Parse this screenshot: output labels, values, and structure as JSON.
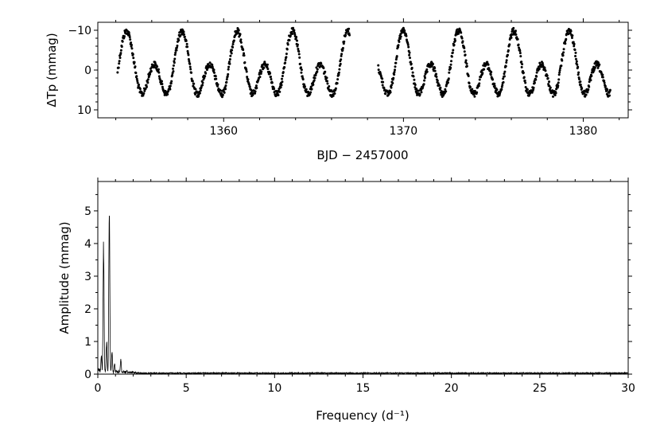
{
  "chart_data": [
    {
      "type": "scatter",
      "xlabel": "BJD − 2457000",
      "ylabel": "ΔTp (mmag)",
      "xlim": [
        1353.0,
        1382.5
      ],
      "ylim": [
        12.0,
        -12.0
      ],
      "y_inverted": true,
      "xticks": [
        1360,
        1370,
        1380
      ],
      "xtick_labels": [
        "1360",
        "1370",
        "1380"
      ],
      "yticks": [
        -10,
        0,
        10
      ],
      "ytick_labels": [
        "−10",
        "0",
        "10"
      ],
      "grid": false,
      "marker_color": "#000000",
      "segments": [
        {
          "x_start": 1354.1,
          "x_end": 1367.0
        },
        {
          "x_start": 1368.6,
          "x_end": 1381.5
        }
      ],
      "model": {
        "components": [
          {
            "frequency": 0.65,
            "amplitude": 5.6,
            "phase": 0.0
          },
          {
            "frequency": 0.325,
            "amplitude": 4.2,
            "phase": 0.0
          }
        ],
        "fit_reference": {
          "note": "approximate reading of plotted light curve",
          "peaks_mmag": [
            {
              "x": 1354.6,
              "y": -8.0
            },
            {
              "x": 1355.4,
              "y": 10.0
            },
            {
              "x": 1357.6,
              "y": -11.5
            },
            {
              "x": 1359.1,
              "y": -3.5
            },
            {
              "x": 1360.7,
              "y": -11.0
            },
            {
              "x": 1363.8,
              "y": -11.5
            },
            {
              "x": 1366.7,
              "y": -7.5
            },
            {
              "x": 1373.0,
              "y": -11.5
            },
            {
              "x": 1376.1,
              "y": -11.0
            },
            {
              "x": 1379.1,
              "y": -10.5
            }
          ]
        }
      }
    },
    {
      "type": "line",
      "xlabel": "Frequency (d⁻¹)",
      "ylabel": "Amplitude (mmag)",
      "xlim": [
        0,
        30
      ],
      "ylim": [
        0,
        5.9
      ],
      "xticks": [
        0,
        5,
        10,
        15,
        20,
        25,
        30
      ],
      "xtick_labels": [
        "0",
        "5",
        "10",
        "15",
        "20",
        "25",
        "30"
      ],
      "yticks": [
        0,
        1,
        2,
        3,
        4,
        5
      ],
      "ytick_labels": [
        "0",
        "1",
        "2",
        "3",
        "4",
        "5"
      ],
      "grid": false,
      "line_color": "#000000",
      "peaks": [
        {
          "x": 0.325,
          "y": 4.25
        },
        {
          "x": 0.65,
          "y": 5.6
        },
        {
          "x": 0.2,
          "y": 0.6
        },
        {
          "x": 0.5,
          "y": 1.05
        },
        {
          "x": 0.8,
          "y": 0.75
        },
        {
          "x": 0.95,
          "y": 0.35
        },
        {
          "x": 1.3,
          "y": 0.5
        },
        {
          "x": 1.65,
          "y": 0.12
        },
        {
          "x": 2.0,
          "y": 0.08
        }
      ],
      "noise_level": 0.03
    }
  ]
}
